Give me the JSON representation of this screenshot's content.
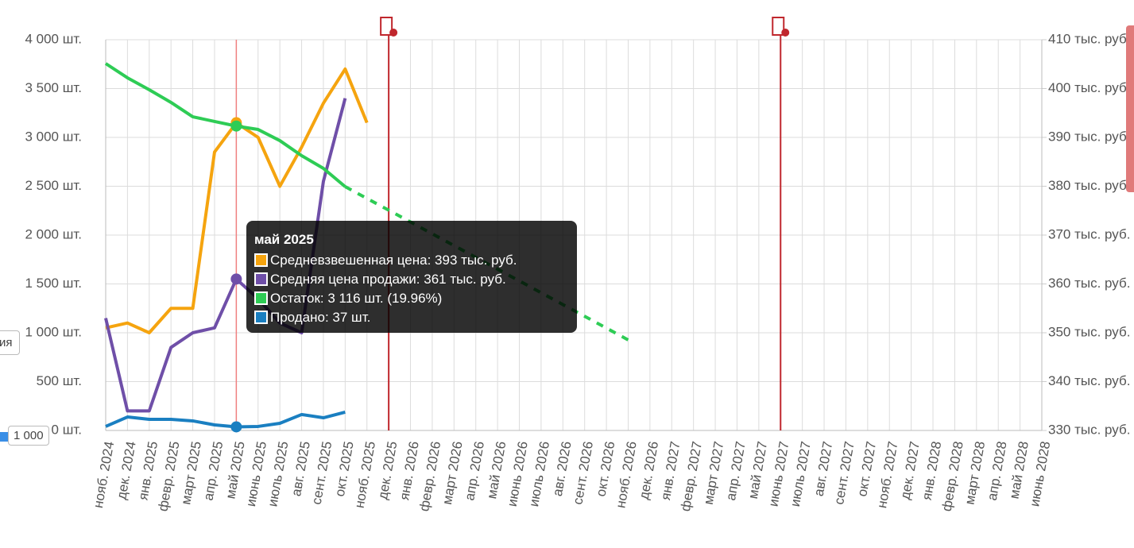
{
  "chart_data": {
    "type": "line",
    "categories": [
      "нояб. 2024",
      "дек. 2024",
      "янв. 2025",
      "февр. 2025",
      "март 2025",
      "апр. 2025",
      "май 2025",
      "июнь 2025",
      "июль 2025",
      "авг. 2025",
      "сент. 2025",
      "окт. 2025",
      "нояб. 2025",
      "дек. 2025",
      "янв. 2026",
      "февр. 2026",
      "март 2026",
      "апр. 2026",
      "май 2026",
      "июнь 2026",
      "июль 2026",
      "авг. 2026",
      "сент. 2026",
      "окт. 2026",
      "нояб. 2026",
      "дек. 2026",
      "янв. 2027",
      "февр. 2027",
      "март 2027",
      "апр. 2027",
      "май 2027",
      "июнь 2027",
      "июль 2027",
      "авг. 2027",
      "сент. 2027",
      "окт. 2027",
      "нояб. 2027",
      "дек. 2027",
      "янв. 2028",
      "февр. 2028",
      "март 2028",
      "апр. 2028",
      "май 2028",
      "июнь 2028"
    ],
    "ylim": [
      0,
      4000
    ],
    "yticks": [
      {
        "value": 0,
        "label": "0 шт."
      },
      {
        "value": 500,
        "label": "500 шт."
      },
      {
        "value": 1000,
        "label": "1 000 шт."
      },
      {
        "value": 1500,
        "label": "1 500 шт."
      },
      {
        "value": 2000,
        "label": "2 000 шт."
      },
      {
        "value": 2500,
        "label": "2 500 шт."
      },
      {
        "value": 3000,
        "label": "3 000 шт."
      },
      {
        "value": 3500,
        "label": "3 500 шт."
      },
      {
        "value": 4000,
        "label": "4 000 шт."
      }
    ],
    "y2lim": [
      330,
      410
    ],
    "y2ticks": [
      {
        "value": 330,
        "label": "330 тыс. руб."
      },
      {
        "value": 340,
        "label": "340 тыс. руб."
      },
      {
        "value": 350,
        "label": "350 тыс. руб."
      },
      {
        "value": 360,
        "label": "360 тыс. руб."
      },
      {
        "value": 370,
        "label": "370 тыс. руб."
      },
      {
        "value": 380,
        "label": "380 тыс. руб."
      },
      {
        "value": 390,
        "label": "390 тыс. руб."
      },
      {
        "value": 400,
        "label": "400 тыс. руб."
      },
      {
        "value": 410,
        "label": "410 тыс. руб."
      }
    ],
    "grid": true,
    "series": [
      {
        "name": "Средневзвешенная цена",
        "color": "#f5a40f",
        "axis": "y2",
        "values": [
          351,
          352,
          350,
          355,
          355,
          387,
          393,
          390,
          380,
          388,
          397,
          404,
          393,
          null,
          null,
          null,
          null,
          null,
          null,
          null,
          null,
          null,
          null,
          null,
          null,
          null,
          null,
          null,
          null,
          null,
          null,
          null,
          null,
          null,
          null,
          null,
          null,
          null,
          null,
          null,
          null,
          null,
          null,
          null
        ]
      },
      {
        "name": "Средняя цена продажи",
        "color": "#6f4fa8",
        "axis": "y2",
        "values": [
          353,
          334,
          334,
          347,
          350,
          351,
          361,
          357,
          352,
          350,
          381,
          398,
          null,
          null,
          null,
          null,
          null,
          null,
          null,
          null,
          null,
          null,
          null,
          null,
          null,
          null,
          null,
          null,
          null,
          null,
          null,
          null,
          null,
          null,
          null,
          null,
          null,
          null,
          null,
          null,
          null,
          null,
          null,
          null
        ]
      },
      {
        "name": "Остаток",
        "color": "#2ecc55",
        "values": [
          3756,
          3610,
          3488,
          3358,
          3211,
          3163,
          3116,
          3081,
          2967,
          2813,
          2683,
          2496,
          null,
          null,
          null,
          null,
          null,
          null,
          null,
          null,
          null,
          null,
          null,
          null,
          null,
          null,
          null,
          null,
          null,
          null,
          null,
          null,
          null,
          null,
          null,
          null,
          null,
          null,
          null,
          null,
          null,
          null,
          null,
          null
        ],
        "forecast": [
          null,
          null,
          null,
          null,
          null,
          null,
          null,
          null,
          null,
          null,
          null,
          2496,
          2375,
          2255,
          2134,
          2013,
          1893,
          1772,
          1651,
          1531,
          1410,
          1289,
          1169,
          1048,
          927,
          null,
          null,
          null,
          null,
          null,
          null,
          null,
          null,
          null,
          null,
          null,
          null,
          null,
          null,
          null,
          null,
          null,
          null,
          null
        ]
      },
      {
        "name": "Продано",
        "color": "#1a7fc1",
        "values": [
          41,
          138,
          114,
          114,
          98,
          57,
          37,
          41,
          73,
          163,
          130,
          187,
          null,
          null,
          null,
          null,
          null,
          null,
          null,
          null,
          null,
          null,
          null,
          null,
          null,
          null,
          null,
          null,
          null,
          null,
          null,
          null,
          null,
          null,
          null,
          null,
          null,
          null,
          null,
          null,
          null,
          null,
          null,
          null
        ]
      }
    ],
    "hover_index": 6,
    "event_indices": [
      13,
      31
    ],
    "tooltip": {
      "title": "май 2025",
      "lines": [
        "Средневзвешенная цена: 393 тыс. руб.",
        "Средняя цена продажи: 361 тыс. руб.",
        "Остаток: 3 116 шт. (19.96%)",
        "Продано: 37 шт."
      ]
    },
    "side_button": "ия",
    "slider_label": "1 000"
  }
}
